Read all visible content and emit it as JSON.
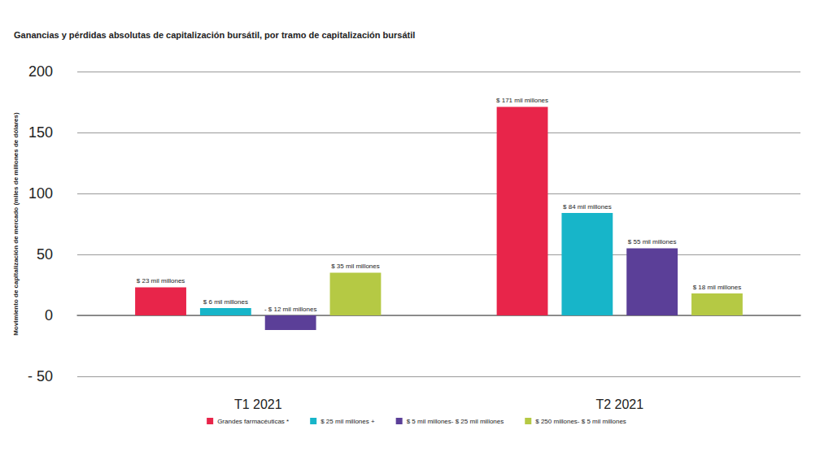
{
  "chart_data": {
    "type": "bar",
    "title": "Ganancias y pérdidas absolutas de capitalización bursátil, por tramo de capitalización bursátil",
    "y_label": "Movimiento de capitalización de mercado (miles de millones de dólares)",
    "categories": [
      "T1 2021",
      "T2 2021"
    ],
    "series": [
      {
        "name": "Grandes farmacéuticas *",
        "color": "#e8254a",
        "values": [
          23,
          171
        ],
        "value_labels": [
          "$ 23 mil millones",
          "$ 171 mil millones"
        ]
      },
      {
        "name": "$ 25 mil millones +",
        "color": "#17b5c9",
        "values": [
          6,
          84
        ],
        "value_labels": [
          "$ 6 mil millones",
          "$ 84 mil millones"
        ]
      },
      {
        "name": "$ 5 mil millones- $ 25 mil millones",
        "color": "#5b3f98",
        "values": [
          -12,
          55
        ],
        "value_labels": [
          "- $ 12 mil millones",
          "$ 55 mil millones"
        ]
      },
      {
        "name": "$ 250 millones- $ 5 mil millones",
        "color": "#b5c944",
        "values": [
          35,
          18
        ],
        "value_labels": [
          "$ 35 mil millones",
          "$ 18 mil millones"
        ]
      }
    ],
    "ylim": [
      -50,
      200
    ],
    "yticks": [
      {
        "value": -50,
        "label": "- 50"
      },
      0,
      50,
      100,
      150,
      200
    ],
    "grid": true,
    "legend": "bottom",
    "data_labels": true
  }
}
